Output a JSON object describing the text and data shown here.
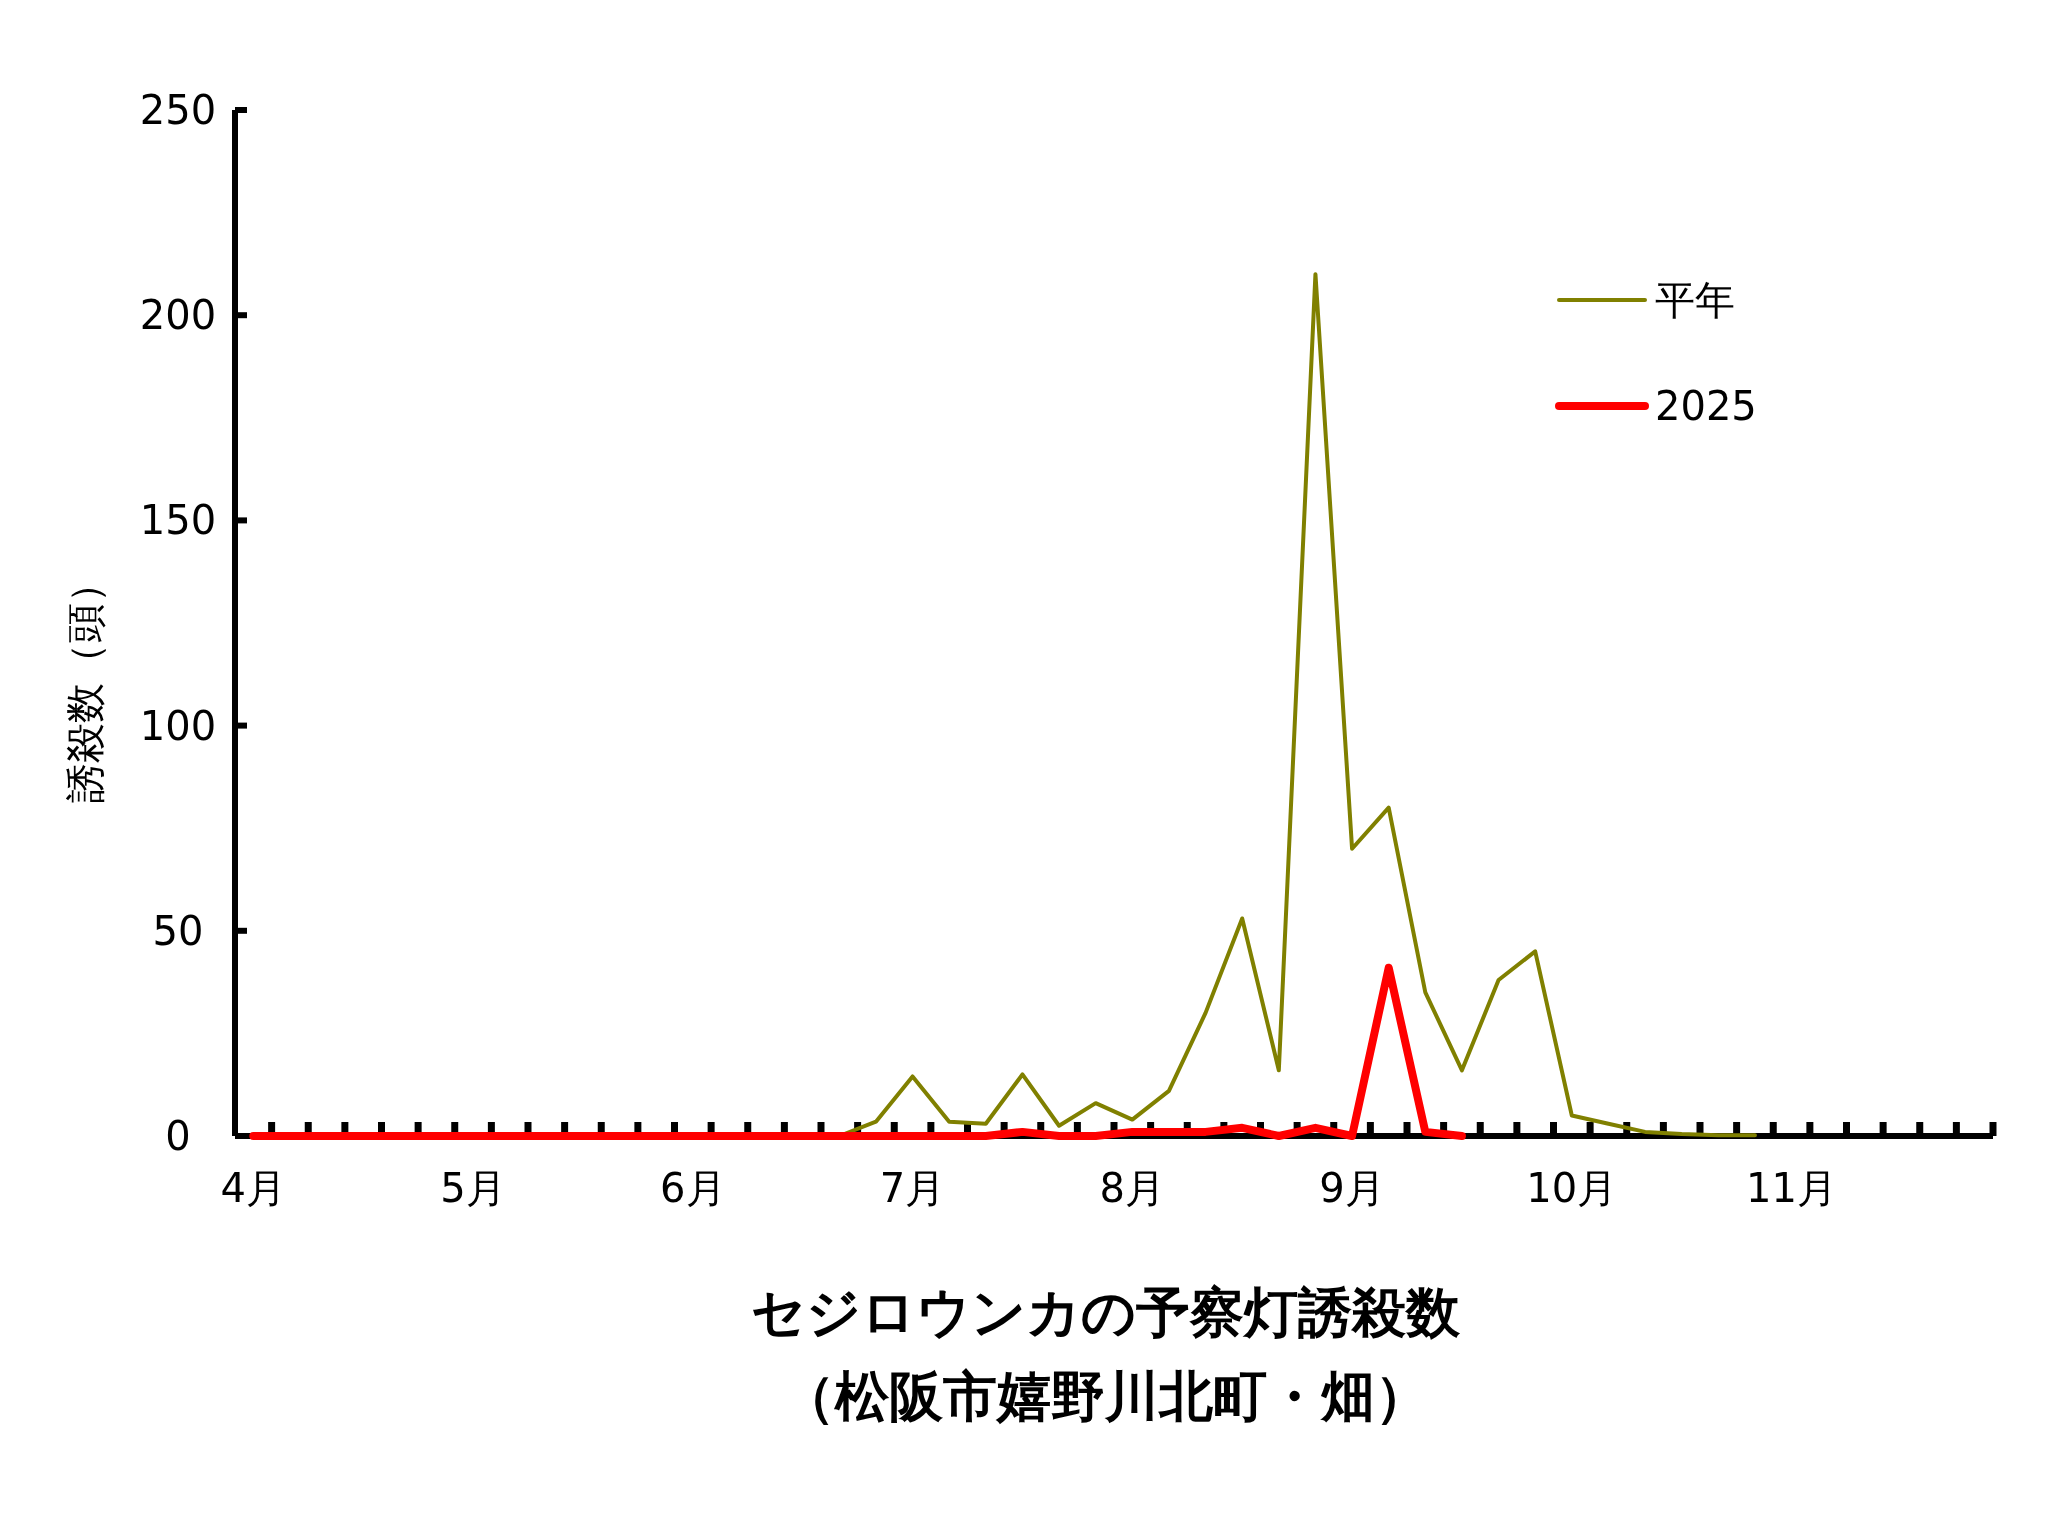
{
  "chart_data": {
    "type": "line",
    "title": "セジロウンカの予察灯誘殺数",
    "subtitle": "（松阪市嬉野川北町・畑）",
    "ylabel": "誘殺数（頭）",
    "categories": [
      "4月",
      null,
      null,
      null,
      null,
      null,
      "5月",
      null,
      null,
      null,
      null,
      null,
      "6月",
      null,
      null,
      null,
      null,
      null,
      "7月",
      null,
      null,
      null,
      null,
      null,
      "8月",
      null,
      null,
      null,
      null,
      null,
      "9月",
      null,
      null,
      null,
      null,
      null,
      "10月",
      null,
      null,
      null,
      null,
      null,
      "11月",
      null,
      null,
      null,
      null,
      null
    ],
    "ylim": [
      0,
      250
    ],
    "yticks": [
      0,
      50,
      100,
      150,
      200,
      250
    ],
    "legend": "top right",
    "series": [
      {
        "name": "平年",
        "color": "#808000",
        "values": [
          null,
          null,
          null,
          null,
          null,
          null,
          null,
          null,
          null,
          null,
          null,
          null,
          null,
          null,
          null,
          0,
          0,
          3.5,
          14.5,
          3.5,
          3,
          15,
          2.5,
          8,
          4,
          11,
          30,
          53,
          16,
          210,
          70,
          80,
          35,
          16,
          38,
          45,
          5,
          3,
          1,
          0.5,
          0.2,
          0.2,
          null,
          null,
          null,
          null,
          null,
          null
        ]
      },
      {
        "name": "2025",
        "color": "#ff0000",
        "values": [
          0,
          0,
          0,
          0,
          0,
          0,
          0,
          0,
          0,
          0,
          0,
          0,
          0,
          0,
          0,
          0,
          0,
          0,
          0,
          0,
          0,
          1,
          0,
          0,
          1,
          1,
          1,
          2,
          0,
          2,
          0,
          41,
          1,
          0,
          null,
          null,
          null,
          null,
          null,
          null,
          null,
          null,
          null,
          null,
          null,
          null,
          null,
          null
        ]
      }
    ]
  }
}
